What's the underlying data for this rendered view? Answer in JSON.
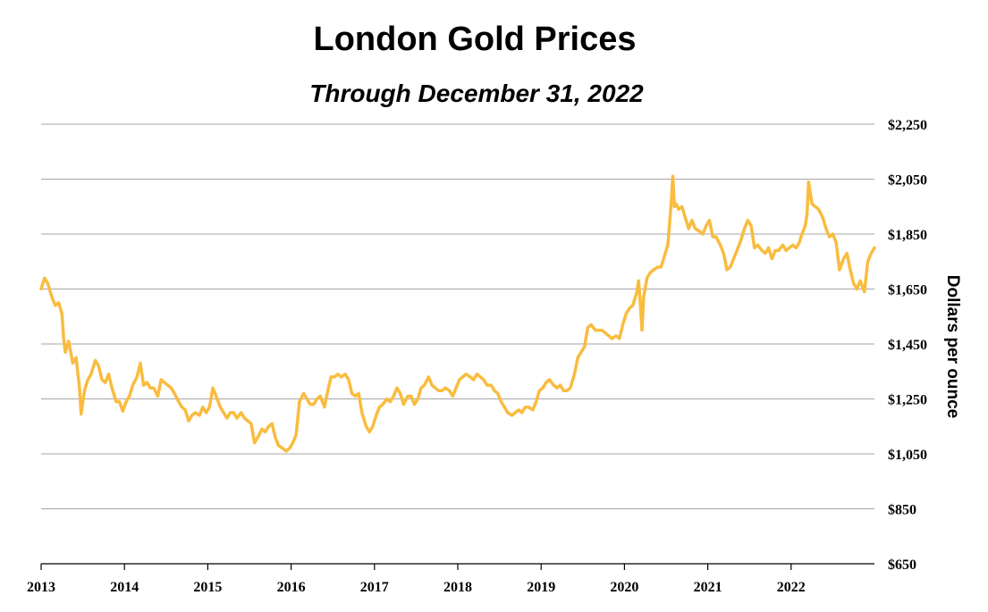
{
  "chart_data": {
    "type": "line",
    "title": "London Gold Prices",
    "subtitle": "Through December 31, 2022",
    "ylabel": "Dollars per ounce",
    "xlabel": "",
    "ylim": [
      650,
      2250
    ],
    "xlim": [
      2013.0,
      2023.0
    ],
    "y_ticks": [
      650,
      850,
      1050,
      1250,
      1450,
      1650,
      1850,
      2050,
      2250
    ],
    "y_tick_labels": [
      "$650",
      "$850",
      "$1,050",
      "$1,250",
      "$1,450",
      "$1,650",
      "$1,850",
      "$2,050",
      "$2,250"
    ],
    "x_ticks": [
      2013,
      2014,
      2015,
      2016,
      2017,
      2018,
      2019,
      2020,
      2021,
      2022
    ],
    "x_tick_labels": [
      "2013",
      "2014",
      "2015",
      "2016",
      "2017",
      "2018",
      "2019",
      "2020",
      "2021",
      "2022"
    ],
    "grid": true,
    "colors": {
      "line": "#F9BC3F",
      "title": "#C9A010",
      "grid": "#a6a6a6",
      "axis": "#000000"
    },
    "series": [
      {
        "name": "London Gold Price",
        "x": [
          2013.0,
          2013.04,
          2013.08,
          2013.13,
          2013.17,
          2013.21,
          2013.25,
          2013.27,
          2013.29,
          2013.33,
          2013.38,
          2013.42,
          2013.46,
          2013.48,
          2013.52,
          2013.56,
          2013.6,
          2013.65,
          2013.69,
          2013.73,
          2013.77,
          2013.81,
          2013.85,
          2013.9,
          2013.94,
          2013.98,
          2014.02,
          2014.06,
          2014.1,
          2014.15,
          2014.19,
          2014.23,
          2014.27,
          2014.31,
          2014.35,
          2014.4,
          2014.44,
          2014.48,
          2014.52,
          2014.56,
          2014.6,
          2014.65,
          2014.69,
          2014.73,
          2014.77,
          2014.81,
          2014.85,
          2014.9,
          2014.94,
          2014.98,
          2015.02,
          2015.06,
          2015.1,
          2015.15,
          2015.19,
          2015.23,
          2015.27,
          2015.31,
          2015.35,
          2015.4,
          2015.44,
          2015.48,
          2015.52,
          2015.56,
          2015.6,
          2015.65,
          2015.69,
          2015.73,
          2015.77,
          2015.81,
          2015.85,
          2015.9,
          2015.94,
          2015.98,
          2016.02,
          2016.06,
          2016.1,
          2016.15,
          2016.19,
          2016.23,
          2016.27,
          2016.31,
          2016.35,
          2016.4,
          2016.44,
          2016.48,
          2016.52,
          2016.56,
          2016.6,
          2016.65,
          2016.69,
          2016.73,
          2016.77,
          2016.81,
          2016.85,
          2016.9,
          2016.94,
          2016.98,
          2017.02,
          2017.06,
          2017.1,
          2017.15,
          2017.19,
          2017.23,
          2017.27,
          2017.31,
          2017.35,
          2017.4,
          2017.44,
          2017.48,
          2017.52,
          2017.56,
          2017.6,
          2017.65,
          2017.69,
          2017.73,
          2017.77,
          2017.81,
          2017.85,
          2017.9,
          2017.94,
          2017.98,
          2018.02,
          2018.06,
          2018.1,
          2018.15,
          2018.19,
          2018.23,
          2018.27,
          2018.31,
          2018.35,
          2018.4,
          2018.44,
          2018.48,
          2018.52,
          2018.56,
          2018.6,
          2018.65,
          2018.69,
          2018.73,
          2018.77,
          2018.81,
          2018.85,
          2018.9,
          2018.94,
          2018.98,
          2019.02,
          2019.06,
          2019.1,
          2019.15,
          2019.19,
          2019.23,
          2019.27,
          2019.31,
          2019.35,
          2019.4,
          2019.44,
          2019.48,
          2019.52,
          2019.56,
          2019.6,
          2019.65,
          2019.69,
          2019.73,
          2019.77,
          2019.81,
          2019.85,
          2019.9,
          2019.94,
          2019.98,
          2020.02,
          2020.06,
          2020.1,
          2020.15,
          2020.17,
          2020.19,
          2020.21,
          2020.23,
          2020.27,
          2020.31,
          2020.35,
          2020.4,
          2020.44,
          2020.48,
          2020.52,
          2020.56,
          2020.58,
          2020.6,
          2020.62,
          2020.65,
          2020.69,
          2020.73,
          2020.77,
          2020.81,
          2020.85,
          2020.9,
          2020.94,
          2020.98,
          2021.02,
          2021.06,
          2021.1,
          2021.15,
          2021.19,
          2021.23,
          2021.27,
          2021.31,
          2021.35,
          2021.4,
          2021.44,
          2021.48,
          2021.52,
          2021.56,
          2021.6,
          2021.65,
          2021.69,
          2021.73,
          2021.77,
          2021.81,
          2021.85,
          2021.9,
          2021.94,
          2021.98,
          2022.02,
          2022.06,
          2022.1,
          2022.13,
          2022.17,
          2022.19,
          2022.21,
          2022.25,
          2022.29,
          2022.33,
          2022.38,
          2022.42,
          2022.46,
          2022.5,
          2022.54,
          2022.58,
          2022.63,
          2022.67,
          2022.71,
          2022.75,
          2022.79,
          2022.83,
          2022.88,
          2022.92,
          2022.96,
          2023.0
        ],
        "values": [
          1650,
          1690,
          1670,
          1620,
          1590,
          1600,
          1560,
          1470,
          1420,
          1460,
          1380,
          1400,
          1290,
          1195,
          1280,
          1320,
          1340,
          1390,
          1370,
          1320,
          1310,
          1340,
          1290,
          1240,
          1240,
          1205,
          1240,
          1260,
          1300,
          1330,
          1380,
          1300,
          1310,
          1290,
          1290,
          1260,
          1320,
          1310,
          1300,
          1290,
          1270,
          1240,
          1220,
          1210,
          1170,
          1190,
          1200,
          1190,
          1220,
          1200,
          1220,
          1290,
          1260,
          1220,
          1200,
          1180,
          1200,
          1200,
          1180,
          1200,
          1180,
          1170,
          1160,
          1090,
          1110,
          1140,
          1130,
          1150,
          1160,
          1110,
          1080,
          1070,
          1060,
          1070,
          1090,
          1120,
          1240,
          1270,
          1250,
          1230,
          1230,
          1250,
          1260,
          1220,
          1280,
          1330,
          1330,
          1340,
          1330,
          1340,
          1320,
          1270,
          1260,
          1270,
          1200,
          1150,
          1130,
          1150,
          1190,
          1220,
          1230,
          1250,
          1240,
          1260,
          1290,
          1270,
          1230,
          1260,
          1260,
          1230,
          1250,
          1290,
          1300,
          1330,
          1300,
          1290,
          1280,
          1280,
          1290,
          1280,
          1260,
          1290,
          1320,
          1330,
          1340,
          1330,
          1320,
          1340,
          1330,
          1320,
          1300,
          1300,
          1280,
          1270,
          1240,
          1220,
          1200,
          1190,
          1200,
          1210,
          1200,
          1220,
          1220,
          1210,
          1240,
          1280,
          1290,
          1310,
          1320,
          1300,
          1290,
          1300,
          1280,
          1280,
          1290,
          1340,
          1400,
          1420,
          1440,
          1510,
          1520,
          1500,
          1500,
          1500,
          1490,
          1480,
          1470,
          1480,
          1470,
          1520,
          1560,
          1580,
          1590,
          1640,
          1680,
          1600,
          1500,
          1620,
          1690,
          1710,
          1720,
          1730,
          1730,
          1770,
          1810,
          1960,
          2060,
          1950,
          1960,
          1940,
          1950,
          1910,
          1870,
          1900,
          1870,
          1860,
          1850,
          1880,
          1900,
          1840,
          1840,
          1810,
          1780,
          1720,
          1730,
          1760,
          1790,
          1830,
          1870,
          1900,
          1880,
          1800,
          1810,
          1790,
          1780,
          1800,
          1760,
          1790,
          1790,
          1810,
          1790,
          1800,
          1810,
          1800,
          1820,
          1850,
          1880,
          1920,
          2040,
          1960,
          1950,
          1940,
          1910,
          1870,
          1840,
          1850,
          1820,
          1720,
          1760,
          1780,
          1720,
          1670,
          1650,
          1680,
          1640,
          1750,
          1780,
          1800
        ]
      }
    ]
  }
}
